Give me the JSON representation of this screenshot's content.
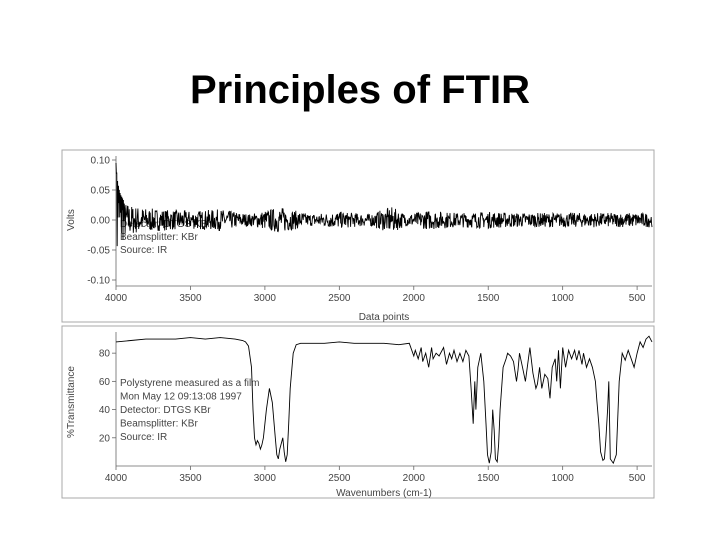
{
  "slide": {
    "title": "Principles of FTIR"
  },
  "colors": {
    "trace": "#000000",
    "frame": "#a8a8a8",
    "text": "#444444",
    "background": "#ffffff"
  },
  "chart_data": [
    {
      "type": "line",
      "title": "",
      "xlabel": "Data points",
      "ylabel": "Volts",
      "xlim": [
        4000,
        400
      ],
      "ylim": [
        -0.1,
        0.1
      ],
      "x_ticks": [
        4000,
        3500,
        3000,
        2500,
        2000,
        1500,
        1000,
        500
      ],
      "x_tick_labels": [
        "4000",
        "3500",
        "3000",
        "2500",
        "2000",
        "1500",
        "1000",
        "500"
      ],
      "y_ticks": [
        0.1,
        0.05,
        0.0,
        -0.05,
        -0.1
      ],
      "y_tick_labels": [
        "0.10",
        "0.05",
        "0.00",
        "-0.05",
        "-0.10"
      ],
      "annotation": [
        "Detector: DTGS KBr",
        "Beamsplitter: KBr",
        "Source: IR"
      ],
      "series": [
        {
          "description": "interferogram",
          "x": [
            4000,
            3990,
            3980,
            3970,
            3960,
            3950,
            3940,
            3900,
            3800,
            3700,
            3500,
            3300,
            3100,
            2900,
            2700,
            2500,
            2300,
            2150,
            2050,
            1900,
            1700,
            1500,
            1300,
            1100,
            900,
            700,
            500,
            400
          ],
          "amplitude": [
            0.1,
            0.07,
            0.055,
            0.045,
            0.04,
            0.035,
            0.03,
            0.025,
            0.02,
            0.018,
            0.015,
            0.018,
            0.01,
            0.022,
            0.01,
            0.014,
            0.01,
            0.022,
            0.01,
            0.016,
            0.012,
            0.014,
            0.012,
            0.012,
            0.012,
            0.012,
            0.012,
            0.012
          ]
        }
      ]
    },
    {
      "type": "line",
      "title": "",
      "xlabel": "Wavenumbers (cm-1)",
      "ylabel": "%Transmittance",
      "xlim": [
        4000,
        400
      ],
      "ylim": [
        0,
        95
      ],
      "x_ticks": [
        4000,
        3500,
        3000,
        2500,
        2000,
        1500,
        1000,
        500
      ],
      "x_tick_labels": [
        "4000",
        "3500",
        "3000",
        "2500",
        "2000",
        "1500",
        "1000",
        "500"
      ],
      "y_ticks": [
        20,
        40,
        60,
        80
      ],
      "y_tick_labels": [
        "20",
        "40",
        "60",
        "80"
      ],
      "annotation": [
        "Polystyrene measured as a film",
        "Mon May 12 09:13:08 1997",
        "Detector: DTGS KBr",
        "Beamsplitter: KBr",
        "Source: IR"
      ],
      "series": [
        {
          "description": "polystyrene spectrum",
          "x": [
            4000,
            3900,
            3800,
            3700,
            3600,
            3500,
            3400,
            3300,
            3200,
            3150,
            3130,
            3110,
            3090,
            3080,
            3070,
            3060,
            3050,
            3040,
            3030,
            3020,
            3010,
            3000,
            2990,
            2970,
            2950,
            2930,
            2920,
            2910,
            2900,
            2880,
            2870,
            2860,
            2850,
            2840,
            2830,
            2810,
            2790,
            2760,
            2700,
            2600,
            2500,
            2400,
            2300,
            2200,
            2100,
            2030,
            2000,
            1990,
            1970,
            1950,
            1940,
            1920,
            1900,
            1880,
            1870,
            1850,
            1830,
            1800,
            1780,
            1760,
            1745,
            1730,
            1710,
            1690,
            1670,
            1650,
            1630,
            1615,
            1601,
            1590,
            1583,
            1570,
            1550,
            1530,
            1515,
            1505,
            1493,
            1480,
            1470,
            1460,
            1452,
            1440,
            1430,
            1420,
            1400,
            1380,
            1370,
            1350,
            1330,
            1310,
            1300,
            1290,
            1270,
            1250,
            1230,
            1220,
            1200,
            1180,
            1170,
            1155,
            1140,
            1120,
            1100,
            1085,
            1070,
            1050,
            1040,
            1028,
            1015,
            1000,
            980,
            960,
            940,
            920,
            906,
            890,
            870,
            860,
            840,
            820,
            800,
            780,
            770,
            757,
            745,
            730,
            720,
            710,
            698,
            690,
            680,
            660,
            640,
            620,
            600,
            580,
            560,
            540,
            520,
            500,
            480,
            460,
            440,
            420,
            400
          ],
          "y": [
            88,
            89,
            90,
            90,
            90,
            91,
            90,
            91,
            90,
            89,
            88,
            85,
            70,
            40,
            20,
            15,
            18,
            16,
            12,
            15,
            20,
            30,
            40,
            55,
            45,
            20,
            8,
            5,
            12,
            20,
            10,
            3,
            8,
            30,
            55,
            80,
            86,
            87,
            87,
            87,
            88,
            87,
            87,
            87,
            86,
            87,
            78,
            82,
            76,
            84,
            74,
            80,
            70,
            84,
            76,
            80,
            78,
            84,
            72,
            80,
            76,
            82,
            74,
            80,
            74,
            82,
            78,
            55,
            30,
            60,
            40,
            70,
            80,
            60,
            30,
            8,
            2,
            10,
            40,
            25,
            5,
            3,
            15,
            40,
            70,
            76,
            80,
            78,
            74,
            60,
            68,
            80,
            70,
            60,
            76,
            84,
            66,
            55,
            58,
            70,
            55,
            65,
            62,
            48,
            70,
            76,
            60,
            82,
            55,
            84,
            70,
            82,
            76,
            82,
            75,
            82,
            72,
            80,
            70,
            76,
            70,
            60,
            46,
            30,
            10,
            4,
            5,
            18,
            40,
            60,
            5,
            2,
            8,
            60,
            80,
            75,
            82,
            76,
            70,
            80,
            88,
            84,
            90,
            92,
            88
          ]
        }
      ]
    }
  ]
}
